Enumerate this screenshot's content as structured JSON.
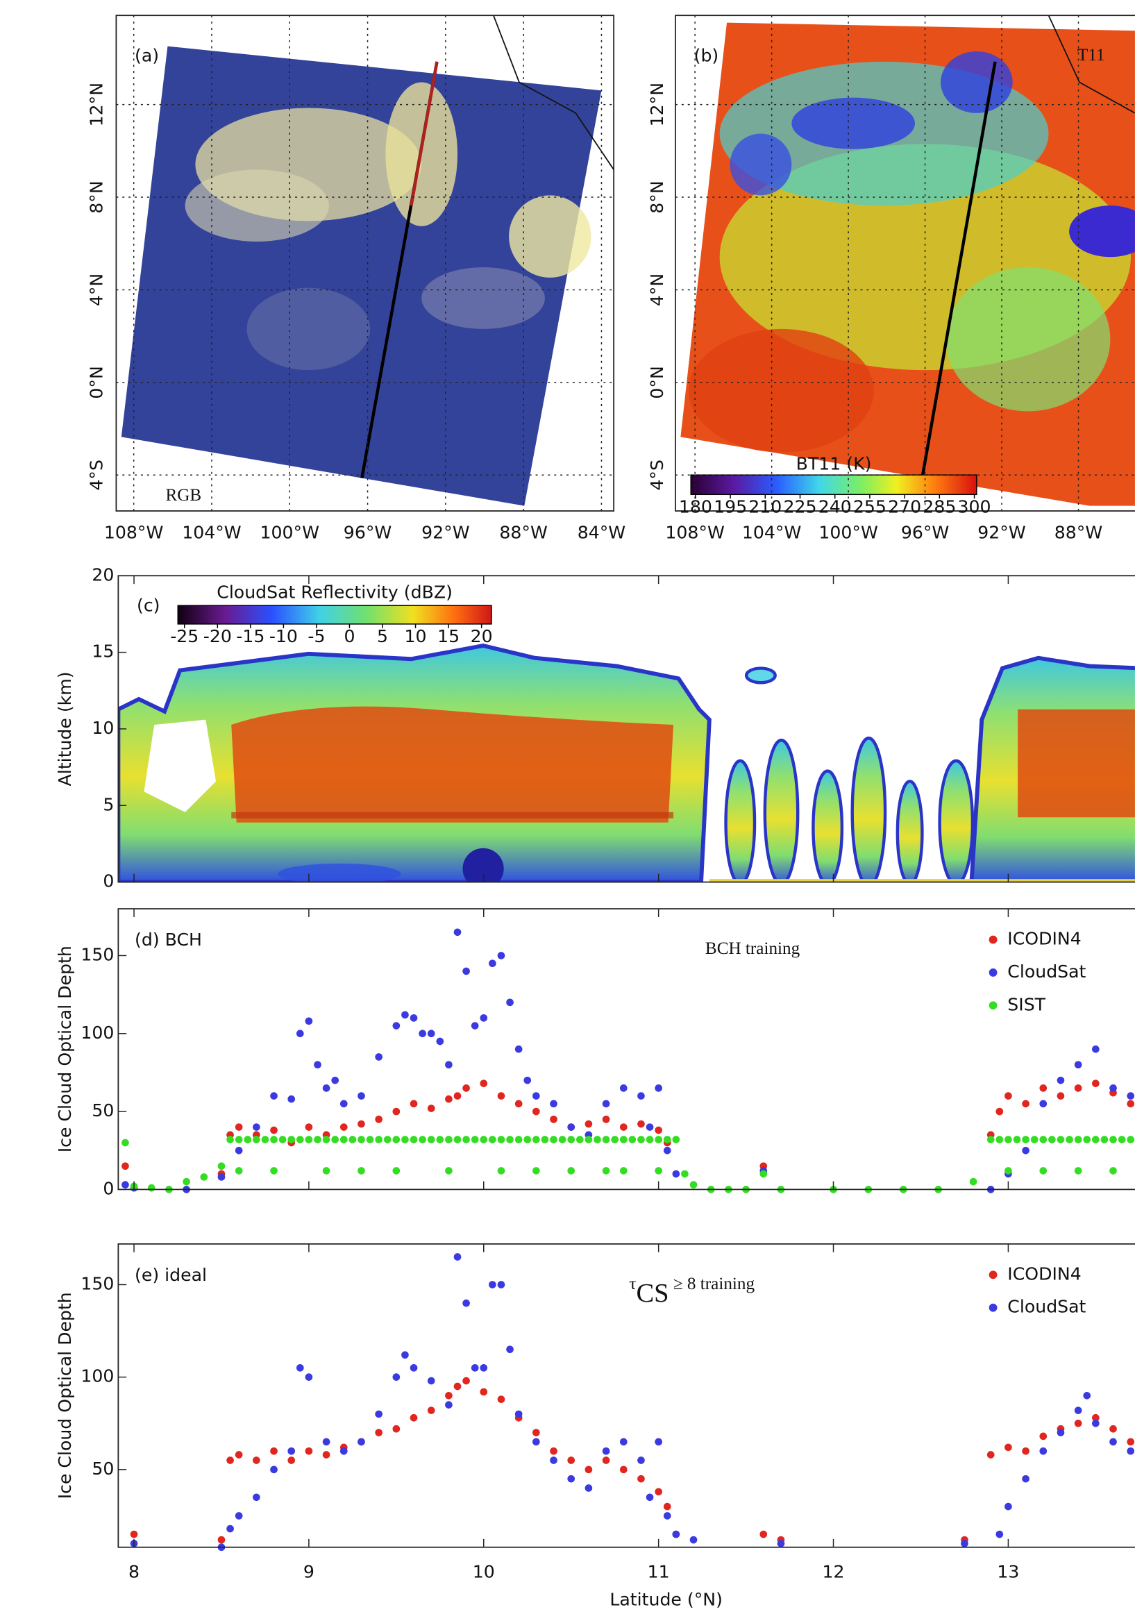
{
  "chart_data": [
    {
      "type": "map",
      "panel_label": "(a)",
      "corner_label": "RGB",
      "xlim": [
        -108.9,
        -83.37
      ],
      "ylim": [
        -5.55,
        15.85
      ],
      "xticks": [
        {
          "value": -108,
          "label": "108°W"
        },
        {
          "value": -104,
          "label": "104°W"
        },
        {
          "value": -100,
          "label": "100°W"
        },
        {
          "value": -96,
          "label": "96°W"
        },
        {
          "value": -92,
          "label": "92°W"
        },
        {
          "value": -88,
          "label": "88°W"
        },
        {
          "value": -84,
          "label": "84°W"
        }
      ],
      "yticks": [
        {
          "value": 12,
          "label": "12°N"
        },
        {
          "value": 8,
          "label": "8°N"
        },
        {
          "value": 4,
          "label": "4°N"
        },
        {
          "value": 0,
          "label": "0°N"
        },
        {
          "value": -4,
          "label": "4°S"
        }
      ]
    },
    {
      "type": "map",
      "panel_label": "(b)",
      "corner_label": "T11",
      "xlim": [
        -109.02,
        -84.73
      ],
      "ylim": [
        -5.55,
        15.85
      ],
      "xticks": [
        {
          "value": -108,
          "label": "108°W"
        },
        {
          "value": -104,
          "label": "104°W"
        },
        {
          "value": -100,
          "label": "100°W"
        },
        {
          "value": -96,
          "label": "96°W"
        },
        {
          "value": -92,
          "label": "92°W"
        },
        {
          "value": -88,
          "label": "88°W"
        }
      ],
      "yticks": [
        {
          "value": 12,
          "label": "12°N"
        },
        {
          "value": 8,
          "label": "8°N"
        },
        {
          "value": 4,
          "label": "4°N"
        },
        {
          "value": 0,
          "label": "0°N"
        },
        {
          "value": -4,
          "label": "4°S"
        }
      ],
      "colorbar": {
        "label": "BT11 (K)",
        "lim": [
          178,
          301
        ],
        "ticks": [
          180,
          195,
          210,
          225,
          240,
          255,
          270,
          285,
          300
        ]
      }
    },
    {
      "type": "heatmap",
      "panel_label": "(c)",
      "ylabel": "Altitude (km)",
      "xlim": [
        7.91,
        13.76
      ],
      "xticks": [
        8,
        9,
        10,
        11,
        12,
        13
      ],
      "ylim": [
        0,
        20
      ],
      "yticks": [
        0,
        5,
        10,
        15,
        20
      ],
      "colorbar": {
        "label": "CloudSat Reflectivity (dBZ)",
        "lim": [
          -26,
          21.5
        ],
        "ticks": [
          -25,
          -20,
          -15,
          -10,
          -5,
          0,
          5,
          10,
          15,
          20
        ]
      }
    },
    {
      "type": "scatter",
      "panel_label": "(d) BCH",
      "annotation": "BCH training",
      "ylabel": "Ice Cloud Optical Depth",
      "xlim": [
        7.91,
        13.76
      ],
      "xticks": [
        8,
        9,
        10,
        11,
        12,
        13
      ],
      "ylim": [
        0,
        180
      ],
      "yticks": [
        0,
        50,
        100,
        150
      ],
      "legend": "upper right",
      "series": [
        {
          "name": "ICODIN4",
          "color": "#e0261f",
          "x": [
            7.95,
            8.5,
            8.55,
            8.6,
            8.7,
            8.8,
            8.9,
            9.0,
            9.1,
            9.2,
            9.3,
            9.4,
            9.5,
            9.6,
            9.7,
            9.8,
            9.85,
            9.9,
            10.0,
            10.1,
            10.2,
            10.3,
            10.4,
            10.5,
            10.6,
            10.7,
            10.8,
            10.9,
            11.0,
            11.05,
            11.6,
            12.9,
            12.95,
            13.0,
            13.1,
            13.2,
            13.3,
            13.4,
            13.5,
            13.6,
            13.7
          ],
          "values": [
            15,
            10,
            35,
            40,
            35,
            38,
            30,
            40,
            35,
            40,
            42,
            45,
            50,
            55,
            52,
            58,
            60,
            65,
            68,
            60,
            55,
            50,
            45,
            40,
            42,
            45,
            40,
            42,
            38,
            30,
            15,
            35,
            50,
            60,
            55,
            65,
            60,
            65,
            68,
            62,
            55
          ]
        },
        {
          "name": "CloudSat",
          "color": "#3a3ae0",
          "x": [
            7.95,
            8.0,
            8.3,
            8.5,
            8.6,
            8.7,
            8.8,
            8.9,
            8.95,
            9.0,
            9.05,
            9.1,
            9.15,
            9.2,
            9.3,
            9.4,
            9.5,
            9.55,
            9.6,
            9.65,
            9.7,
            9.75,
            9.8,
            9.85,
            9.9,
            9.95,
            10.0,
            10.05,
            10.1,
            10.15,
            10.2,
            10.25,
            10.3,
            10.4,
            10.5,
            10.6,
            10.7,
            10.8,
            10.9,
            10.95,
            11.0,
            11.05,
            11.1,
            11.6,
            12.9,
            13.0,
            13.1,
            13.2,
            13.3,
            13.4,
            13.5,
            13.6,
            13.7
          ],
          "values": [
            3,
            1,
            0,
            8,
            25,
            40,
            60,
            58,
            100,
            108,
            80,
            65,
            70,
            55,
            60,
            85,
            105,
            112,
            110,
            100,
            100,
            95,
            80,
            165,
            140,
            105,
            110,
            145,
            150,
            120,
            90,
            70,
            60,
            55,
            40,
            35,
            55,
            65,
            60,
            40,
            65,
            25,
            10,
            12,
            0,
            10,
            25,
            55,
            70,
            80,
            90,
            65,
            60
          ]
        },
        {
          "name": "SIST",
          "color": "#33dd22",
          "x": [
            7.95,
            8.0,
            8.1,
            8.2,
            8.3,
            8.4,
            8.5,
            8.55,
            8.6,
            8.65,
            8.7,
            8.75,
            8.8,
            8.85,
            8.9,
            8.95,
            9.0,
            9.05,
            9.1,
            9.15,
            9.2,
            9.25,
            9.3,
            9.35,
            9.4,
            9.45,
            9.5,
            9.55,
            9.6,
            9.65,
            9.7,
            9.75,
            9.8,
            9.85,
            9.9,
            9.95,
            10.0,
            10.05,
            10.1,
            10.15,
            10.2,
            10.25,
            10.3,
            10.35,
            10.4,
            10.45,
            10.5,
            10.55,
            10.6,
            10.65,
            10.7,
            10.75,
            10.8,
            10.85,
            10.9,
            10.95,
            11.0,
            11.05,
            11.1,
            8.6,
            8.8,
            9.1,
            9.3,
            9.5,
            9.8,
            10.1,
            10.3,
            10.5,
            10.7,
            10.8,
            11.0,
            11.15,
            11.2,
            11.3,
            11.4,
            11.5,
            11.6,
            11.7,
            12.0,
            12.2,
            12.4,
            12.6,
            12.8,
            12.9,
            12.95,
            13.0,
            13.05,
            13.1,
            13.15,
            13.2,
            13.25,
            13.3,
            13.35,
            13.4,
            13.45,
            13.5,
            13.55,
            13.6,
            13.65,
            13.7,
            13.0,
            13.2,
            13.4,
            13.6
          ],
          "values": [
            30,
            2,
            1,
            0,
            5,
            8,
            15,
            32,
            32,
            32,
            32,
            32,
            32,
            32,
            32,
            32,
            32,
            32,
            32,
            32,
            32,
            32,
            32,
            32,
            32,
            32,
            32,
            32,
            32,
            32,
            32,
            32,
            32,
            32,
            32,
            32,
            32,
            32,
            32,
            32,
            32,
            32,
            32,
            32,
            32,
            32,
            32,
            32,
            32,
            32,
            32,
            32,
            32,
            32,
            32,
            32,
            32,
            32,
            32,
            12,
            12,
            12,
            12,
            12,
            12,
            12,
            12,
            12,
            12,
            12,
            12,
            10,
            3,
            0,
            0,
            0,
            10,
            0,
            0,
            0,
            0,
            0,
            5,
            32,
            32,
            32,
            32,
            32,
            32,
            32,
            32,
            32,
            32,
            32,
            32,
            32,
            32,
            32,
            32,
            32,
            12,
            12,
            12,
            12
          ]
        }
      ]
    },
    {
      "type": "scatter",
      "panel_label": "(e) ideal",
      "annotation_parts": [
        "τ",
        "CS",
        " ≥ 8 training"
      ],
      "ylabel": "Ice Cloud Optical Depth",
      "xlabel": "Latitude (°N)",
      "xlim": [
        7.91,
        13.76
      ],
      "xticks": [
        8,
        9,
        10,
        11,
        12,
        13
      ],
      "ylim": [
        8,
        172
      ],
      "yticks": [
        50,
        100,
        150
      ],
      "legend": "upper right",
      "series": [
        {
          "name": "ICODIN4",
          "color": "#e0261f",
          "x": [
            8.0,
            8.5,
            8.55,
            8.6,
            8.7,
            8.8,
            8.9,
            9.0,
            9.1,
            9.2,
            9.3,
            9.4,
            9.5,
            9.6,
            9.7,
            9.8,
            9.85,
            9.9,
            10.0,
            10.1,
            10.2,
            10.3,
            10.4,
            10.5,
            10.6,
            10.7,
            10.8,
            10.9,
            11.0,
            11.05,
            11.1,
            11.6,
            11.7,
            12.75,
            12.9,
            13.0,
            13.1,
            13.2,
            13.3,
            13.4,
            13.5,
            13.6,
            13.7
          ],
          "values": [
            15,
            12,
            55,
            58,
            55,
            60,
            55,
            60,
            58,
            62,
            65,
            70,
            72,
            78,
            82,
            90,
            95,
            98,
            92,
            88,
            78,
            70,
            60,
            55,
            50,
            55,
            50,
            45,
            38,
            30,
            15,
            15,
            12,
            12,
            58,
            62,
            60,
            68,
            72,
            75,
            78,
            72,
            65
          ]
        },
        {
          "name": "CloudSat",
          "color": "#3a3ae0",
          "x": [
            8.0,
            8.5,
            8.55,
            8.6,
            8.7,
            8.8,
            8.9,
            8.95,
            9.0,
            9.1,
            9.2,
            9.3,
            9.4,
            9.5,
            9.55,
            9.6,
            9.7,
            9.8,
            9.85,
            9.9,
            9.95,
            10.0,
            10.05,
            10.1,
            10.15,
            10.2,
            10.3,
            10.4,
            10.5,
            10.6,
            10.7,
            10.8,
            10.9,
            10.95,
            11.0,
            11.05,
            11.1,
            11.2,
            11.7,
            12.75,
            12.95,
            13.0,
            13.1,
            13.2,
            13.3,
            13.4,
            13.45,
            13.5,
            13.6,
            13.7
          ],
          "values": [
            10,
            8,
            18,
            25,
            35,
            50,
            60,
            105,
            100,
            65,
            60,
            65,
            80,
            100,
            112,
            105,
            98,
            85,
            165,
            140,
            105,
            105,
            150,
            150,
            115,
            80,
            65,
            55,
            45,
            40,
            60,
            65,
            55,
            35,
            65,
            25,
            15,
            12,
            10,
            10,
            15,
            30,
            45,
            60,
            70,
            82,
            90,
            75,
            65,
            60
          ]
        }
      ]
    }
  ]
}
